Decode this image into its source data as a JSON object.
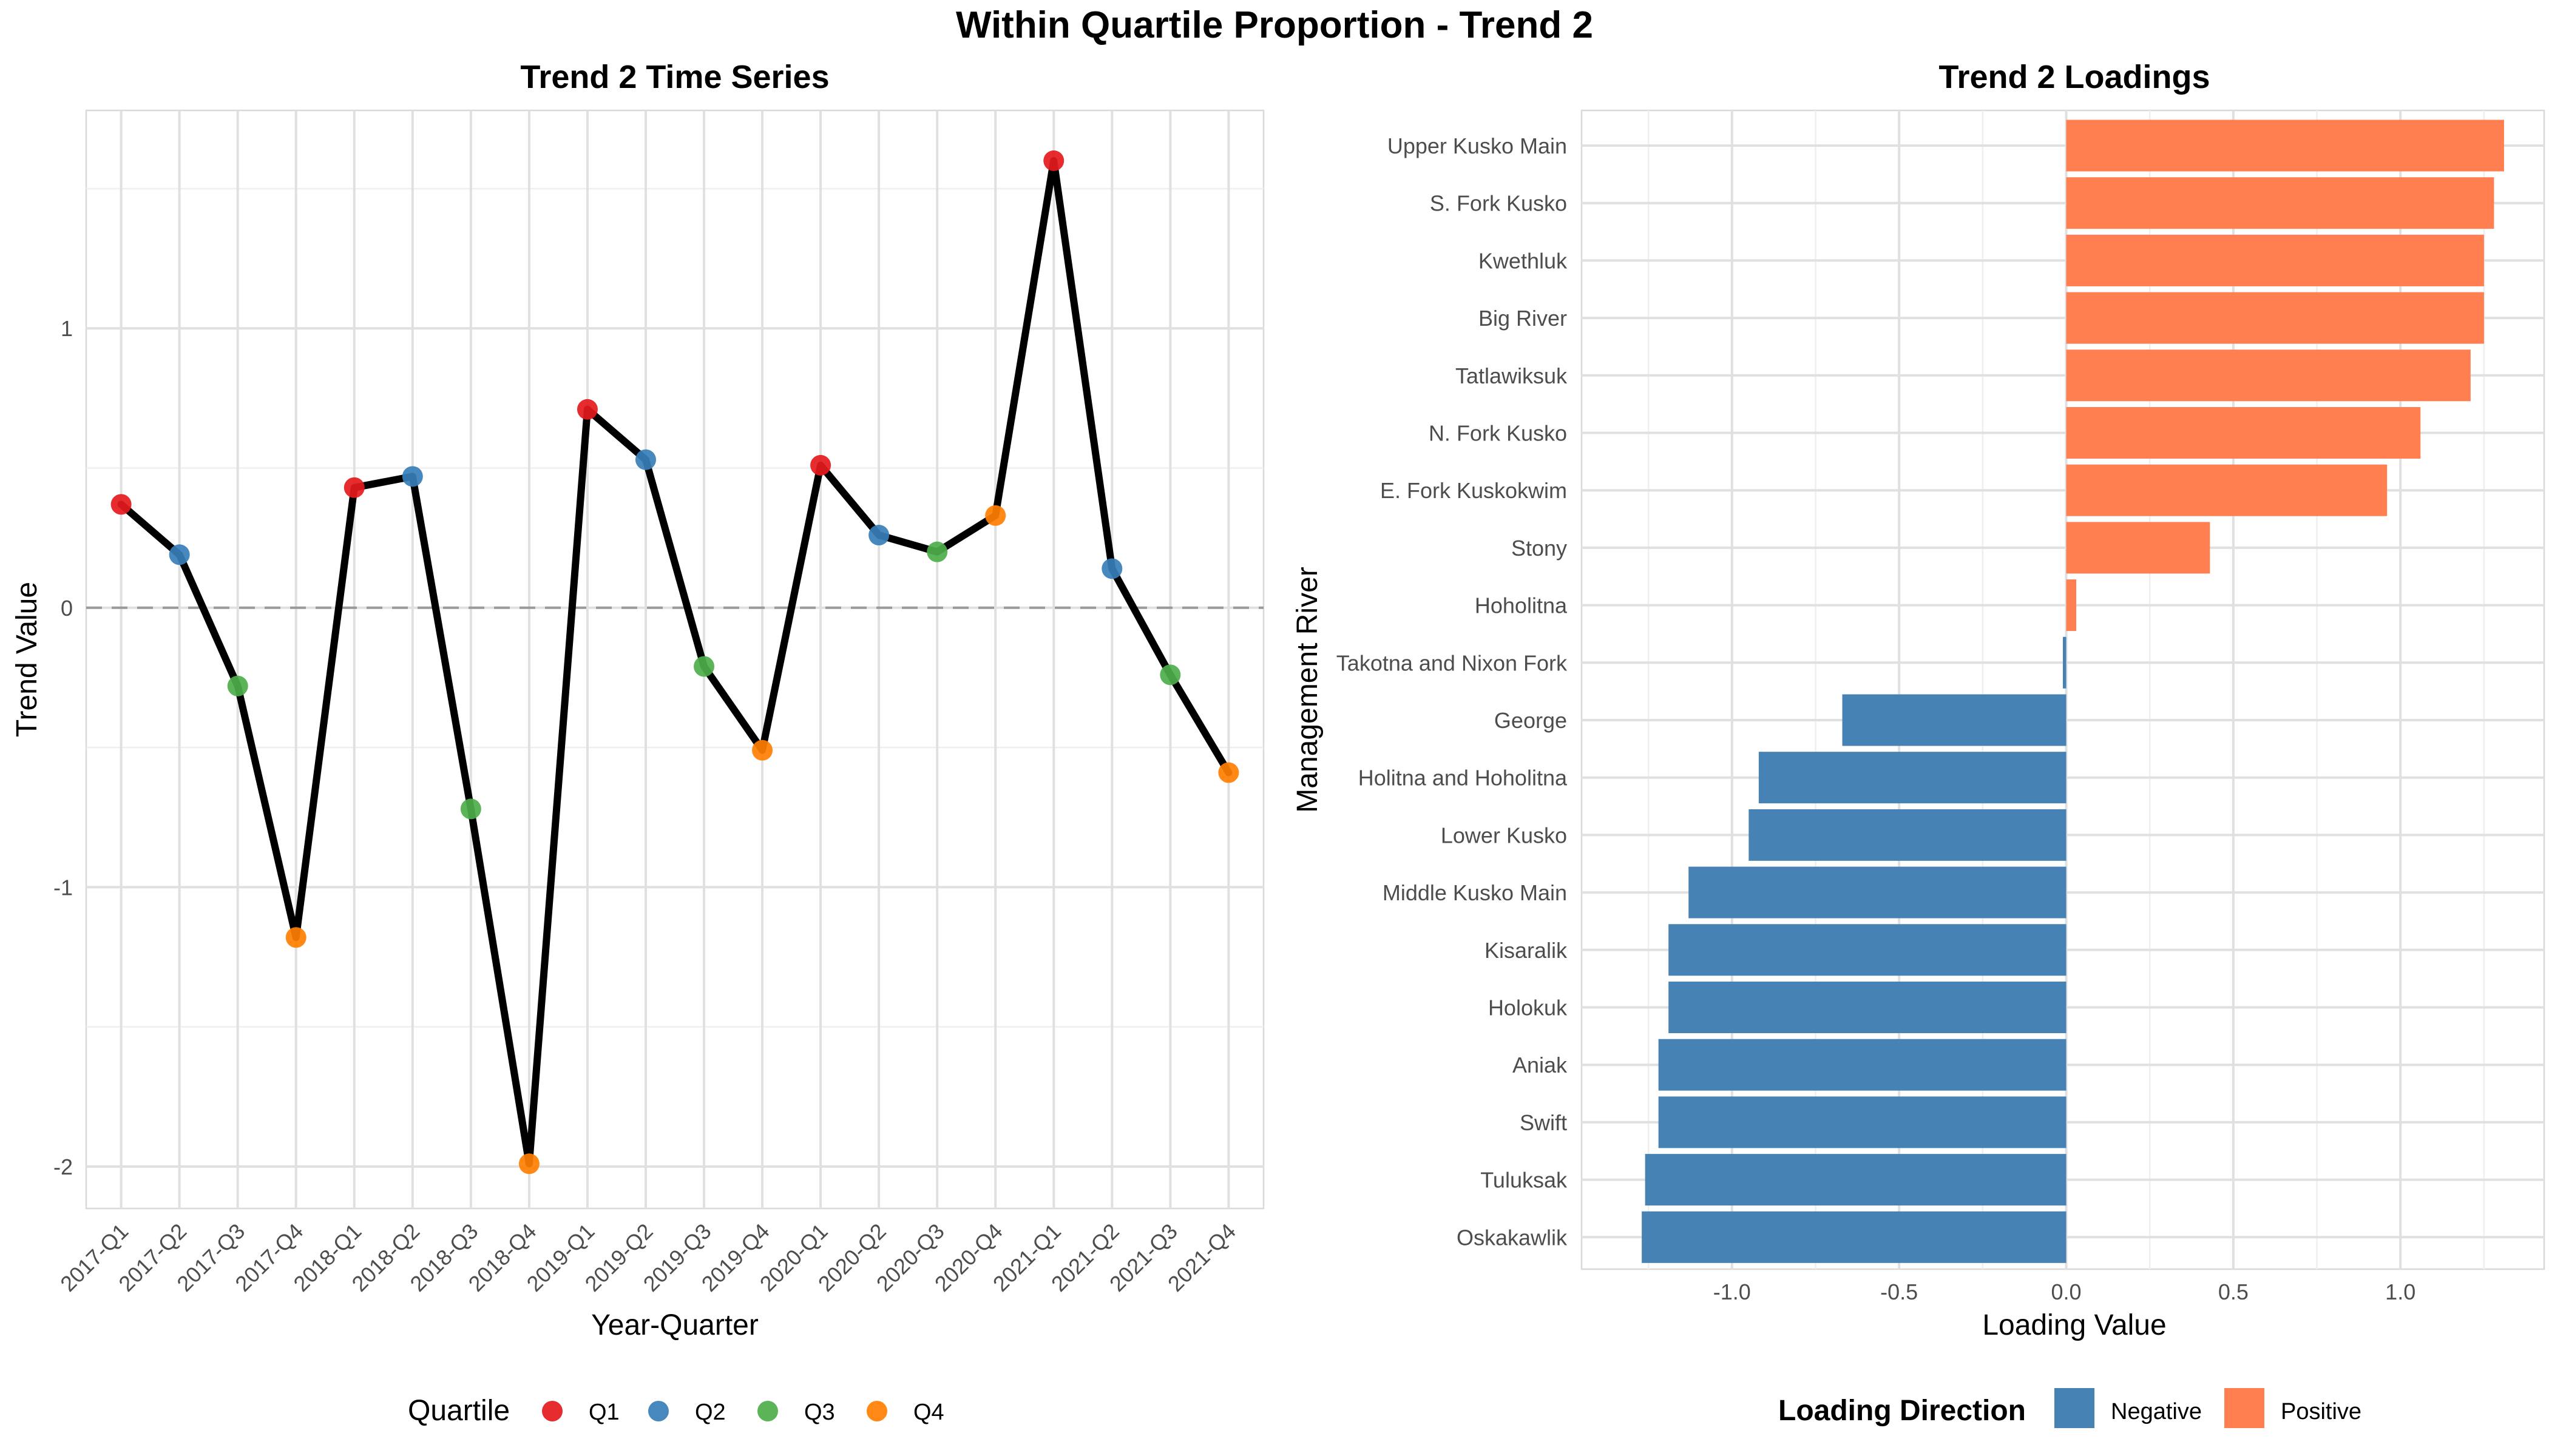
{
  "figure": {
    "title": "Within Quartile Proportion - Trend 2"
  },
  "colors": {
    "Q1": "#e41a1c",
    "Q2": "#377eb8",
    "Q3": "#4daf4a",
    "Q4": "#ff7f00",
    "negative": "#4682b4",
    "positive": "#ff7f50",
    "line": "#000000"
  },
  "chart_data": [
    {
      "type": "line",
      "title": "Trend 2 Time Series",
      "xlabel": "Year-Quarter",
      "ylabel": "Trend Value",
      "ylim": [
        -2.15,
        1.78
      ],
      "yticks": [
        -2,
        -1,
        0,
        1
      ],
      "reference_line": 0,
      "grid": true,
      "legend": {
        "title": "Quartile",
        "position": "bottom",
        "items": [
          "Q1",
          "Q2",
          "Q3",
          "Q4"
        ]
      },
      "x": [
        "2017-Q1",
        "2017-Q2",
        "2017-Q3",
        "2017-Q4",
        "2018-Q1",
        "2018-Q2",
        "2018-Q3",
        "2018-Q4",
        "2019-Q1",
        "2019-Q2",
        "2019-Q3",
        "2019-Q4",
        "2020-Q1",
        "2020-Q2",
        "2020-Q3",
        "2020-Q4",
        "2021-Q1",
        "2021-Q2",
        "2021-Q3",
        "2021-Q4"
      ],
      "y": [
        0.37,
        0.19,
        -0.28,
        -1.18,
        0.43,
        0.47,
        -0.72,
        -1.99,
        0.71,
        0.53,
        -0.21,
        -0.51,
        0.51,
        0.26,
        0.2,
        0.33,
        1.6,
        0.14,
        -0.24,
        -0.59
      ],
      "quartile": [
        "Q1",
        "Q2",
        "Q3",
        "Q4",
        "Q1",
        "Q2",
        "Q3",
        "Q4",
        "Q1",
        "Q2",
        "Q3",
        "Q4",
        "Q1",
        "Q2",
        "Q3",
        "Q4",
        "Q1",
        "Q2",
        "Q3",
        "Q4"
      ]
    },
    {
      "type": "bar",
      "orientation": "horizontal",
      "title": "Trend 2 Loadings",
      "xlabel": "Loading Value",
      "ylabel": "Management River",
      "xlim": [
        -1.45,
        1.43
      ],
      "xticks": [
        -1.0,
        -0.5,
        0.0,
        0.5,
        1.0
      ],
      "xtick_labels": [
        "-1.0",
        "-0.5",
        "0.0",
        "0.5",
        "1.0"
      ],
      "grid": true,
      "legend": {
        "title": "Loading Direction",
        "position": "bottom",
        "items": [
          "Negative",
          "Positive"
        ]
      },
      "categories": [
        "Upper Kusko Main",
        "S. Fork Kusko",
        "Kwethluk",
        "Big River",
        "Tatlawiksuk",
        "N. Fork Kusko",
        "E. Fork Kuskokwim",
        "Stony",
        "Hoholitna",
        "Takotna and Nixon Fork",
        "George",
        "Holitna and Hoholitna",
        "Lower Kusko",
        "Middle Kusko Main",
        "Kisaralik",
        "Holokuk",
        "Aniak",
        "Swift",
        "Tuluksak",
        "Oskakawlik"
      ],
      "values": [
        1.31,
        1.28,
        1.25,
        1.25,
        1.21,
        1.06,
        0.96,
        0.43,
        0.03,
        -0.01,
        -0.67,
        -0.92,
        -0.95,
        -1.13,
        -1.19,
        -1.19,
        -1.22,
        -1.22,
        -1.26,
        -1.27
      ]
    }
  ]
}
